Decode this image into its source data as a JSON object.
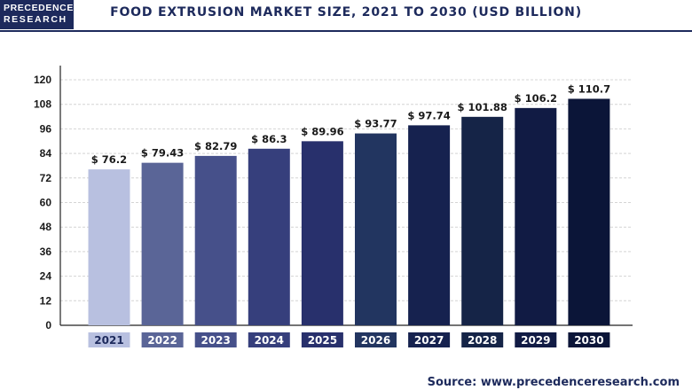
{
  "header": {
    "logo_line1": "PRECEDENCE",
    "logo_line2": "RESEARCH",
    "title": "FOOD EXTRUSION MARKET SIZE, 2021 TO 2030 (USD BILLION)"
  },
  "footer": {
    "source_label": "Source:",
    "source_url": "www.precedenceresearch.com"
  },
  "colors": {
    "brand": "#1d2a5c",
    "bars": [
      "#b8c0e0",
      "#5a6597",
      "#46508a",
      "#363f7c",
      "#28306c",
      "#223560",
      "#16224f",
      "#152447",
      "#111b44",
      "#0b1538"
    ]
  },
  "chart_data": {
    "type": "bar",
    "title": "FOOD EXTRUSION MARKET SIZE, 2021 TO 2030 (USD BILLION)",
    "categories": [
      "2021",
      "2022",
      "2023",
      "2024",
      "2025",
      "2026",
      "2027",
      "2028",
      "2029",
      "2030"
    ],
    "values": [
      76.2,
      79.43,
      82.79,
      86.3,
      89.96,
      93.77,
      97.74,
      101.88,
      106.2,
      110.7
    ],
    "value_labels": [
      "$ 76.2",
      "$ 79.43",
      "$ 82.79",
      "$ 86.3",
      "$ 89.96",
      "$ 93.77",
      "$ 97.74",
      "$ 101.88",
      "$ 106.2",
      "$ 110.7"
    ],
    "yticks": [
      "0",
      "12",
      "24",
      "36",
      "48",
      "60",
      "72",
      "84",
      "96",
      "108",
      "120"
    ],
    "ylim": [
      0,
      120
    ],
    "grid": true
  }
}
